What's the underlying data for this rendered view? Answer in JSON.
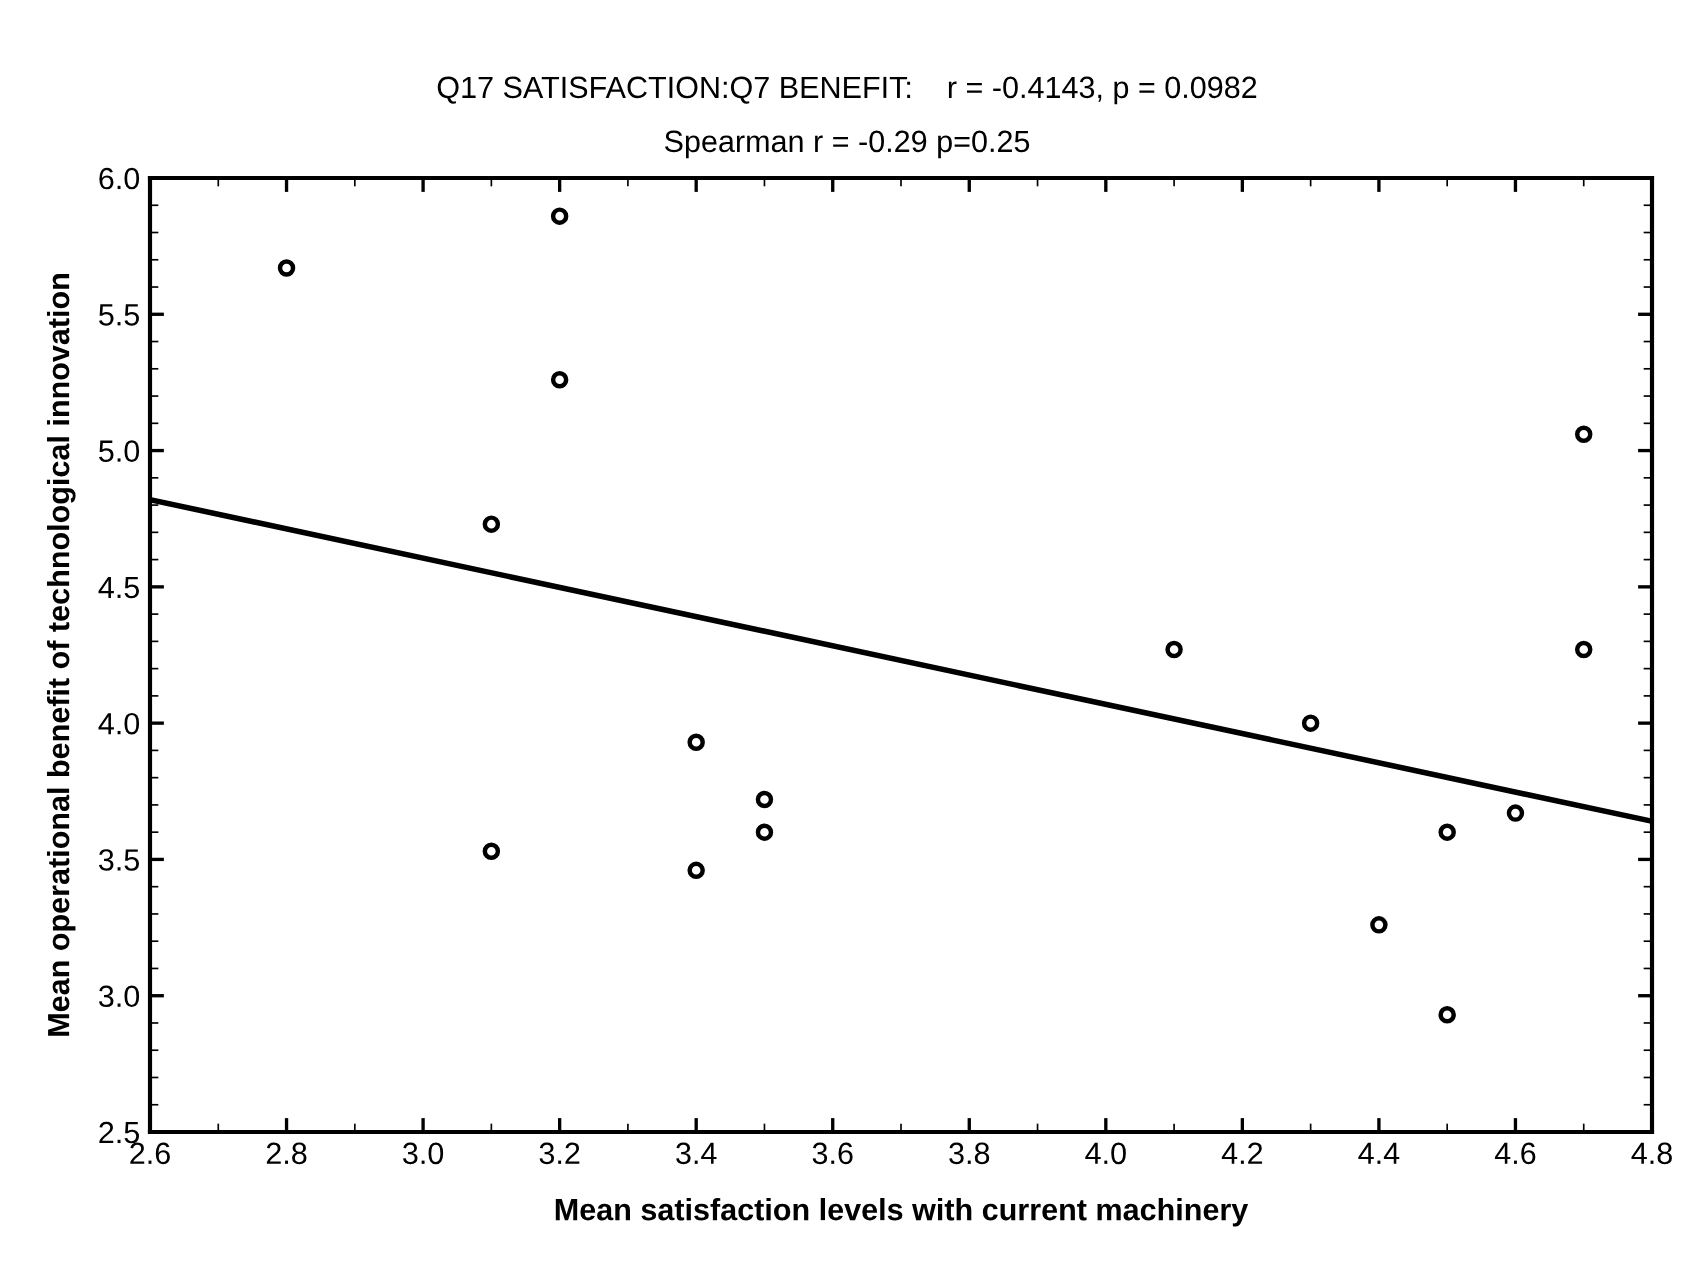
{
  "chart_data": {
    "type": "scatter",
    "title": "Q17 SATISFACTION:Q7 BENEFIT:    r = -0.4143, p = 0.0982",
    "subtitle": "Spearman r = -0.29 p=0.25",
    "xlabel": "Mean satisfaction levels with current machinery",
    "ylabel": "Mean operational benefit of technological innovation",
    "series": [
      {
        "color": "#000000",
        "marker": "circle",
        "x": [
          2.8,
          3.2,
          3.2,
          3.1,
          3.1,
          3.4,
          3.4,
          3.5,
          3.5,
          4.1,
          4.3,
          4.4,
          4.5,
          4.5,
          4.6,
          4.7,
          4.7
        ],
        "values": [
          5.67,
          5.86,
          5.26,
          4.73,
          3.53,
          3.93,
          3.46,
          3.72,
          3.6,
          4.27,
          4.0,
          3.26,
          3.6,
          2.93,
          3.67,
          5.06,
          4.27
        ]
      },
      {
        "type": "line",
        "color": "#000000",
        "line_style": "solid",
        "x": [
          2.6,
          4.8
        ],
        "values": [
          4.82,
          3.64
        ]
      }
    ],
    "xlim": [
      2.6,
      4.8
    ],
    "ylim": [
      2.5,
      6.0
    ],
    "xticks": [
      {
        "value": 2.6,
        "label": "2.6"
      },
      {
        "value": 2.8,
        "label": "2.8"
      },
      {
        "value": 3.0,
        "label": "3.0"
      },
      {
        "value": 3.2,
        "label": "3.2"
      },
      {
        "value": 3.4,
        "label": "3.4"
      },
      {
        "value": 3.6,
        "label": "3.6"
      },
      {
        "value": 3.8,
        "label": "3.8"
      },
      {
        "value": 4.0,
        "label": "4.0"
      },
      {
        "value": 4.2,
        "label": "4.2"
      },
      {
        "value": 4.4,
        "label": "4.4"
      },
      {
        "value": 4.6,
        "label": "4.6"
      },
      {
        "value": 4.8,
        "label": "4.8"
      }
    ],
    "yticks": [
      {
        "value": 2.5,
        "label": "2.5"
      },
      {
        "value": 3.0,
        "label": "3.0"
      },
      {
        "value": 3.5,
        "label": "3.5"
      },
      {
        "value": 4.0,
        "label": "4.0"
      },
      {
        "value": 4.5,
        "label": "4.5"
      },
      {
        "value": 5.0,
        "label": "5.0"
      },
      {
        "value": 5.5,
        "label": "5.5"
      },
      {
        "value": 6.0,
        "label": "6.0"
      }
    ],
    "grid": false,
    "legend": false
  }
}
